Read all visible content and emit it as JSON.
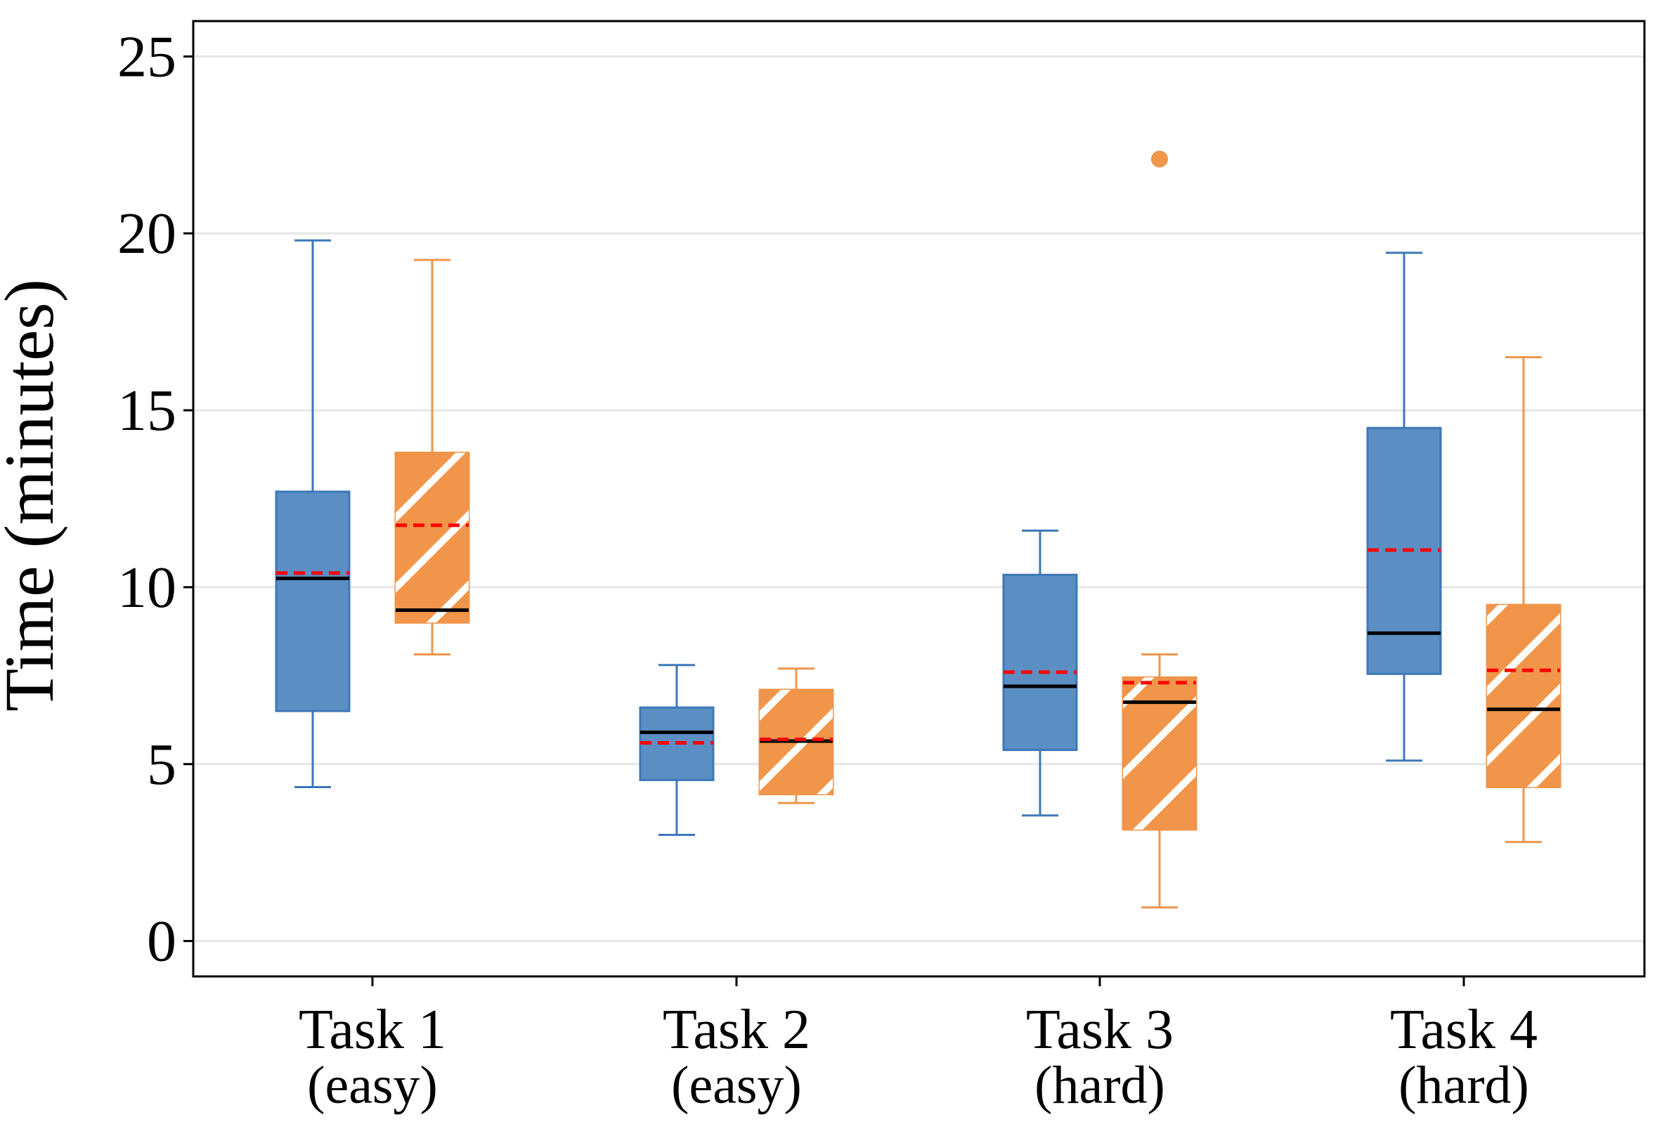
{
  "chart_data": {
    "type": "box",
    "ylabel": "Time (minutes)",
    "xlabel": "",
    "ylim": [
      -1,
      26
    ],
    "yticks": [
      "0",
      "5",
      "10",
      "15",
      "20",
      "25"
    ],
    "grid": "horizontal",
    "categories": [
      {
        "label": "Task 1",
        "sublabel": "(easy)"
      },
      {
        "label": "Task 2",
        "sublabel": "(easy)"
      },
      {
        "label": "Task 3",
        "sublabel": "(hard)"
      },
      {
        "label": "Task 4",
        "sublabel": "(hard)"
      }
    ],
    "series": [
      {
        "color": "#5b8fc4",
        "edge": "#3d78b8",
        "pattern": "solid",
        "boxes": [
          {
            "whisker_low": 4.35,
            "q1": 6.5,
            "median": 10.25,
            "mean": 10.4,
            "q3": 12.7,
            "whisker_high": 19.8,
            "outliers": []
          },
          {
            "whisker_low": 3.0,
            "q1": 4.55,
            "median": 5.9,
            "mean": 5.6,
            "q3": 6.6,
            "whisker_high": 7.8,
            "outliers": []
          },
          {
            "whisker_low": 3.55,
            "q1": 5.4,
            "median": 7.2,
            "mean": 7.6,
            "q3": 10.35,
            "whisker_high": 11.6,
            "outliers": []
          },
          {
            "whisker_low": 5.1,
            "q1": 7.55,
            "median": 8.7,
            "mean": 11.05,
            "q3": 14.5,
            "whisker_high": 19.45,
            "outliers": []
          }
        ]
      },
      {
        "color": "#f0954a",
        "edge": "#f0954a",
        "pattern": "hatched",
        "boxes": [
          {
            "whisker_low": 8.1,
            "q1": 9.0,
            "median": 9.35,
            "mean": 11.75,
            "q3": 13.8,
            "whisker_high": 19.25,
            "outliers": []
          },
          {
            "whisker_low": 3.9,
            "q1": 4.15,
            "median": 5.65,
            "mean": 5.7,
            "q3": 7.1,
            "whisker_high": 7.7,
            "outliers": []
          },
          {
            "whisker_low": 0.95,
            "q1": 3.15,
            "median": 6.75,
            "mean": 7.3,
            "q3": 7.45,
            "whisker_high": 8.1,
            "outliers": [
              22.1
            ]
          },
          {
            "whisker_low": 2.8,
            "q1": 4.35,
            "median": 6.55,
            "mean": 7.65,
            "q3": 9.5,
            "whisker_high": 16.5,
            "outliers": []
          }
        ]
      }
    ],
    "median_color": "#000000",
    "mean_color": "#ff0000",
    "grid_color": "#e6e6e6"
  }
}
